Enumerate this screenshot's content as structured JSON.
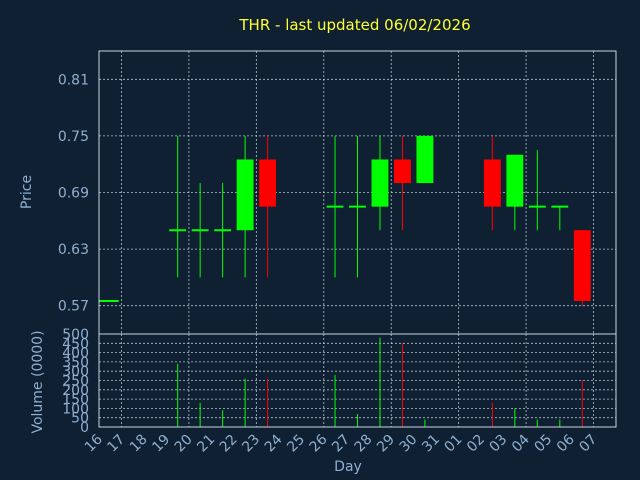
{
  "chart_data": {
    "type": "candlestick",
    "title": "THR - last updated 06/02/2026",
    "xlabel": "Day",
    "ylabel": "Price",
    "volume_label": "Volume (0000)",
    "ylim": [
      0.54,
      0.84
    ],
    "yticks": [
      "0.57",
      "0.63",
      "0.69",
      "0.75",
      "0.81"
    ],
    "volume_ylim": [
      0,
      500
    ],
    "volume_ticks": [
      "0",
      "50",
      "100",
      "150",
      "200",
      "250",
      "300",
      "350",
      "400",
      "450",
      "500"
    ],
    "days": [
      "16",
      "17",
      "18",
      "19",
      "20",
      "21",
      "22",
      "23",
      "24",
      "25",
      "26",
      "27",
      "28",
      "29",
      "30",
      "31",
      "01",
      "02",
      "03",
      "04",
      "05",
      "06",
      "07"
    ],
    "colors": {
      "up": "#00ff00",
      "down": "#ff0000",
      "flat": "#00ff00"
    },
    "candles": [
      {
        "day": "16",
        "open": 0.575,
        "close": 0.575,
        "high": 0.575,
        "low": 0.575,
        "volume": 0
      },
      {
        "day": "19",
        "open": 0.65,
        "close": 0.65,
        "high": 0.75,
        "low": 0.6,
        "volume": 340
      },
      {
        "day": "20",
        "open": 0.65,
        "close": 0.65,
        "high": 0.7,
        "low": 0.6,
        "volume": 130
      },
      {
        "day": "21",
        "open": 0.65,
        "close": 0.65,
        "high": 0.7,
        "low": 0.6,
        "volume": 90
      },
      {
        "day": "22",
        "open": 0.65,
        "close": 0.725,
        "high": 0.75,
        "low": 0.6,
        "volume": 260
      },
      {
        "day": "23",
        "open": 0.725,
        "close": 0.675,
        "high": 0.75,
        "low": 0.6,
        "volume": 260
      },
      {
        "day": "26",
        "open": 0.675,
        "close": 0.675,
        "high": 0.75,
        "low": 0.6,
        "volume": 280
      },
      {
        "day": "27",
        "open": 0.675,
        "close": 0.675,
        "high": 0.75,
        "low": 0.6,
        "volume": 70
      },
      {
        "day": "28",
        "open": 0.675,
        "close": 0.725,
        "high": 0.75,
        "low": 0.65,
        "volume": 480
      },
      {
        "day": "29",
        "open": 0.725,
        "close": 0.7,
        "high": 0.75,
        "low": 0.65,
        "volume": 450
      },
      {
        "day": "30",
        "open": 0.7,
        "close": 0.75,
        "high": 0.75,
        "low": 0.7,
        "volume": 40
      },
      {
        "day": "02",
        "open": 0.725,
        "close": 0.675,
        "high": 0.75,
        "low": 0.65,
        "volume": 130
      },
      {
        "day": "03",
        "open": 0.675,
        "close": 0.73,
        "high": 0.73,
        "low": 0.65,
        "volume": 100
      },
      {
        "day": "04",
        "open": 0.675,
        "close": 0.675,
        "high": 0.735,
        "low": 0.65,
        "volume": 40
      },
      {
        "day": "05",
        "open": 0.675,
        "close": 0.675,
        "high": 0.675,
        "low": 0.65,
        "volume": 40
      },
      {
        "day": "06",
        "open": 0.65,
        "close": 0.575,
        "high": 0.65,
        "low": 0.57,
        "volume": 250
      }
    ]
  }
}
